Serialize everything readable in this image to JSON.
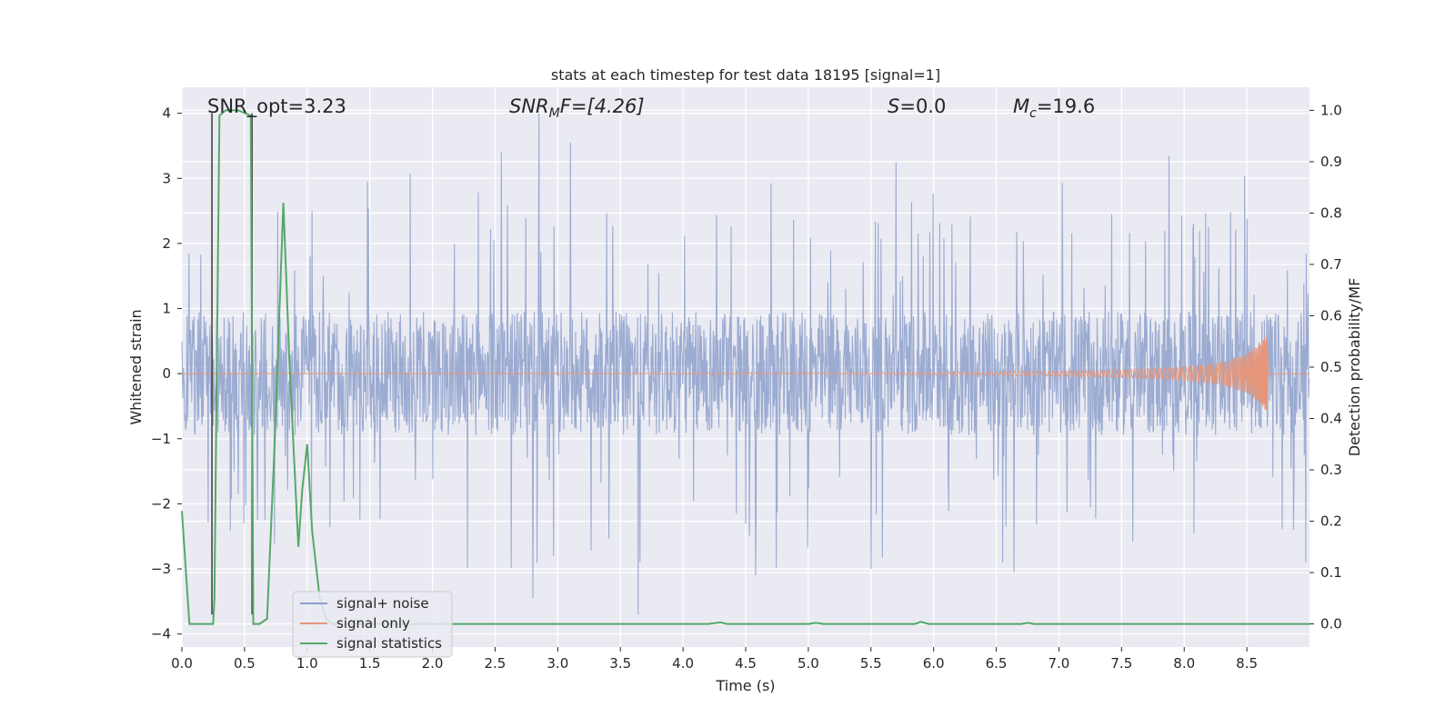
{
  "chart_data": {
    "type": "line",
    "title": "stats at each timestep for test data 18195 [signal=1]",
    "xlabel": "Time (s)",
    "ylabel_left": "Whitened strain",
    "ylabel_right": "Detection probability/MF",
    "xlim": [
      0.0,
      9.0
    ],
    "ylim_left": [
      -4.2,
      4.4
    ],
    "ylim_right": [
      -0.045,
      1.045
    ],
    "xticks": [
      0.0,
      0.5,
      1.0,
      1.5,
      2.0,
      2.5,
      3.0,
      3.5,
      4.0,
      4.5,
      5.0,
      5.5,
      6.0,
      6.5,
      7.0,
      7.5,
      8.0,
      8.5
    ],
    "xtick_labels": [
      "0.0",
      "0.5",
      "1.0",
      "1.5",
      "2.0",
      "2.5",
      "3.0",
      "3.5",
      "4.0",
      "4.5",
      "5.0",
      "5.5",
      "6.0",
      "6.5",
      "7.0",
      "7.5",
      "8.0",
      "8.5"
    ],
    "yticks_left": [
      -4,
      -3,
      -2,
      -1,
      0,
      1,
      2,
      3,
      4
    ],
    "ytick_labels_left": [
      "−4",
      "−3",
      "−2",
      "−1",
      "0",
      "1",
      "2",
      "3",
      "4"
    ],
    "yticks_right": [
      0.0,
      0.1,
      0.2,
      0.3,
      0.4,
      0.5,
      0.6,
      0.7,
      0.8,
      0.9,
      1.0
    ],
    "ytick_labels_right": [
      "0.0",
      "0.1",
      "0.2",
      "0.3",
      "0.4",
      "0.5",
      "0.6",
      "0.7",
      "0.8",
      "0.9",
      "1.0"
    ],
    "annotations": {
      "snr_opt": "SNR_opt=3.23",
      "snr_mf_label": "SNR",
      "snr_mf_sub": "M",
      "snr_mf_tail": "F=[4.26]",
      "s_label": "S",
      "s_tail": "=0.0",
      "mc_label": "M",
      "mc_sub": "c",
      "mc_tail": "=19.6"
    },
    "vertical_markers": [
      0.24,
      0.56
    ],
    "series": [
      {
        "name": "signal+ noise",
        "color": "#8da0cb",
        "axis": "left",
        "description": "whitened noise envelope, approx ±1 core with peaks to ±4",
        "envelope": {
          "core_amplitude": 0.95,
          "peak_max": 4.0,
          "peak_min": -3.7
        },
        "notable_peaks": [
          {
            "x": 2.85,
            "y": 4.0
          },
          {
            "x": 3.1,
            "y": 3.55
          },
          {
            "x": 2.55,
            "y": 3.4
          },
          {
            "x": 5.7,
            "y": 3.25
          },
          {
            "x": 7.88,
            "y": 3.35
          },
          {
            "x": 3.64,
            "y": -3.7
          },
          {
            "x": 2.8,
            "y": -3.45
          },
          {
            "x": 5.5,
            "y": -3.0
          },
          {
            "x": 6.55,
            "y": -2.9
          }
        ]
      },
      {
        "name": "signal only",
        "color": "#e5967a",
        "axis": "left",
        "description": "chirp growing in amplitude toward merger near t=8.67s",
        "x": [
          0.0,
          5.0,
          6.0,
          7.0,
          7.5,
          8.0,
          8.3,
          8.5,
          8.6,
          8.66,
          8.68
        ],
        "amplitude": [
          0.0,
          0.01,
          0.02,
          0.04,
          0.06,
          0.1,
          0.17,
          0.3,
          0.45,
          0.6,
          0.0
        ]
      },
      {
        "name": "signal statistics",
        "color": "#55a868",
        "axis": "right",
        "x": [
          0.0,
          0.06,
          0.12,
          0.25,
          0.26,
          0.3,
          0.35,
          0.4,
          0.45,
          0.5,
          0.55,
          0.57,
          0.62,
          0.68,
          0.74,
          0.78,
          0.81,
          0.86,
          0.9,
          0.93,
          0.96,
          1.0,
          1.04,
          1.1,
          1.15,
          1.2,
          4.2,
          4.3,
          4.35,
          5.0,
          5.06,
          5.12,
          5.85,
          5.9,
          5.96,
          6.7,
          6.75,
          6.8,
          9.0
        ],
        "y": [
          0.22,
          0.0,
          0.0,
          0.0,
          0.05,
          0.99,
          1.0,
          1.0,
          1.0,
          0.995,
          0.99,
          0.0,
          0.0,
          0.01,
          0.35,
          0.62,
          0.82,
          0.5,
          0.3,
          0.15,
          0.26,
          0.35,
          0.18,
          0.05,
          0.01,
          0.0,
          0.0,
          0.003,
          0.0,
          0.0,
          0.002,
          0.0,
          0.0,
          0.004,
          0.0,
          0.0,
          0.002,
          0.0,
          0.0
        ]
      }
    ],
    "legend": {
      "position": "lower-left",
      "entries": [
        {
          "label": "signal+ noise",
          "color": "#8da0cb"
        },
        {
          "label": "signal only",
          "color": "#e5967a"
        },
        {
          "label": "signal statistics",
          "color": "#55a868"
        }
      ]
    },
    "style": {
      "plot_background": "#eaeaf2",
      "grid_color": "#ffffff",
      "marker_color": "#3a3a3a"
    }
  }
}
